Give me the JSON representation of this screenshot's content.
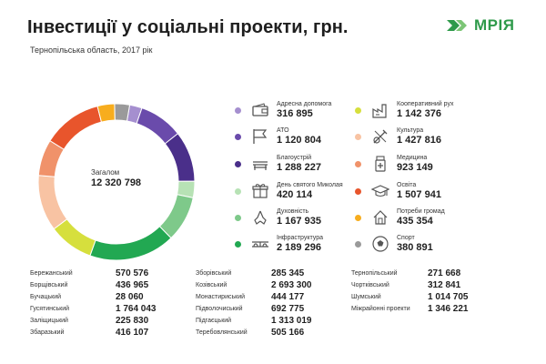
{
  "header": {
    "title": "Інвестиції у соціальні проекти, грн.",
    "subtitle": "Тернопільська область, 2017 рік"
  },
  "logo": {
    "text": "МРІЯ",
    "accent": "#2e9a4a"
  },
  "chart_data": {
    "type": "pie",
    "center_label": "Загалом",
    "center_value": "12 320 798",
    "series": [
      {
        "name": "Адресна допомога",
        "value": 316895,
        "label": "316 895",
        "color": "#a58fcf",
        "icon": "wallet-icon"
      },
      {
        "name": "АТО",
        "value": 1120804,
        "label": "1 120 804",
        "color": "#6a4bab",
        "icon": "flag-icon"
      },
      {
        "name": "Благоустрій",
        "value": 1288227,
        "label": "1 288 227",
        "color": "#4a2f8a",
        "icon": "bench-icon"
      },
      {
        "name": "День святого Миколая",
        "value": 420114,
        "label": "420 114",
        "color": "#b7e2b5",
        "icon": "gift-icon"
      },
      {
        "name": "Духовність",
        "value": 1167935,
        "label": "1 167 935",
        "color": "#7ec98a",
        "icon": "praying-hands-icon"
      },
      {
        "name": "Інфраструктура",
        "value": 2189296,
        "label": "2 189 296",
        "color": "#22a852",
        "icon": "bridge-icon"
      },
      {
        "name": "Кооперативний рух",
        "value": 1142376,
        "label": "1 142 376",
        "color": "#d6df3d",
        "icon": "factory-icon"
      },
      {
        "name": "Культура",
        "value": 1427816,
        "label": "1 427 816",
        "color": "#f8c3a3",
        "icon": "violin-icon"
      },
      {
        "name": "Медицина",
        "value": 923149,
        "label": "923 149",
        "color": "#f0926a",
        "icon": "medicine-icon"
      },
      {
        "name": "Освіта",
        "value": 1507941,
        "label": "1 507 941",
        "color": "#e8552c",
        "icon": "graduation-cap-icon"
      },
      {
        "name": "Потреби громад",
        "value": 435354,
        "label": "435 354",
        "color": "#f7ad1e",
        "icon": "house-icon"
      },
      {
        "name": "Спорт",
        "value": 380891,
        "label": "380 891",
        "color": "#9a9a9a",
        "icon": "soccer-ball-icon"
      }
    ],
    "districts": [
      {
        "name": "Бережанський",
        "value": "570 576"
      },
      {
        "name": "Борщівський",
        "value": "436 965"
      },
      {
        "name": "Бучацький",
        "value": "28 060"
      },
      {
        "name": "Гусятинський",
        "value": "1 764 043"
      },
      {
        "name": "Заліщицький",
        "value": "225 830"
      },
      {
        "name": "Збаразький",
        "value": "416 107"
      },
      {
        "name": "Зборівський",
        "value": "285 345"
      },
      {
        "name": "Козівський",
        "value": "2 693 300"
      },
      {
        "name": "Монастириський",
        "value": "444 177"
      },
      {
        "name": "Підволочиський",
        "value": "692 775"
      },
      {
        "name": "Підгаєцький",
        "value": "1 313 019"
      },
      {
        "name": "Теребовлянський",
        "value": "505 166"
      },
      {
        "name": "Тернопільський",
        "value": "271 668"
      },
      {
        "name": "Чортківський",
        "value": "312 841"
      },
      {
        "name": "Шумський",
        "value": "1 014 705"
      },
      {
        "name": "Міжрайонні проекти",
        "value": "1 346 221"
      }
    ]
  }
}
